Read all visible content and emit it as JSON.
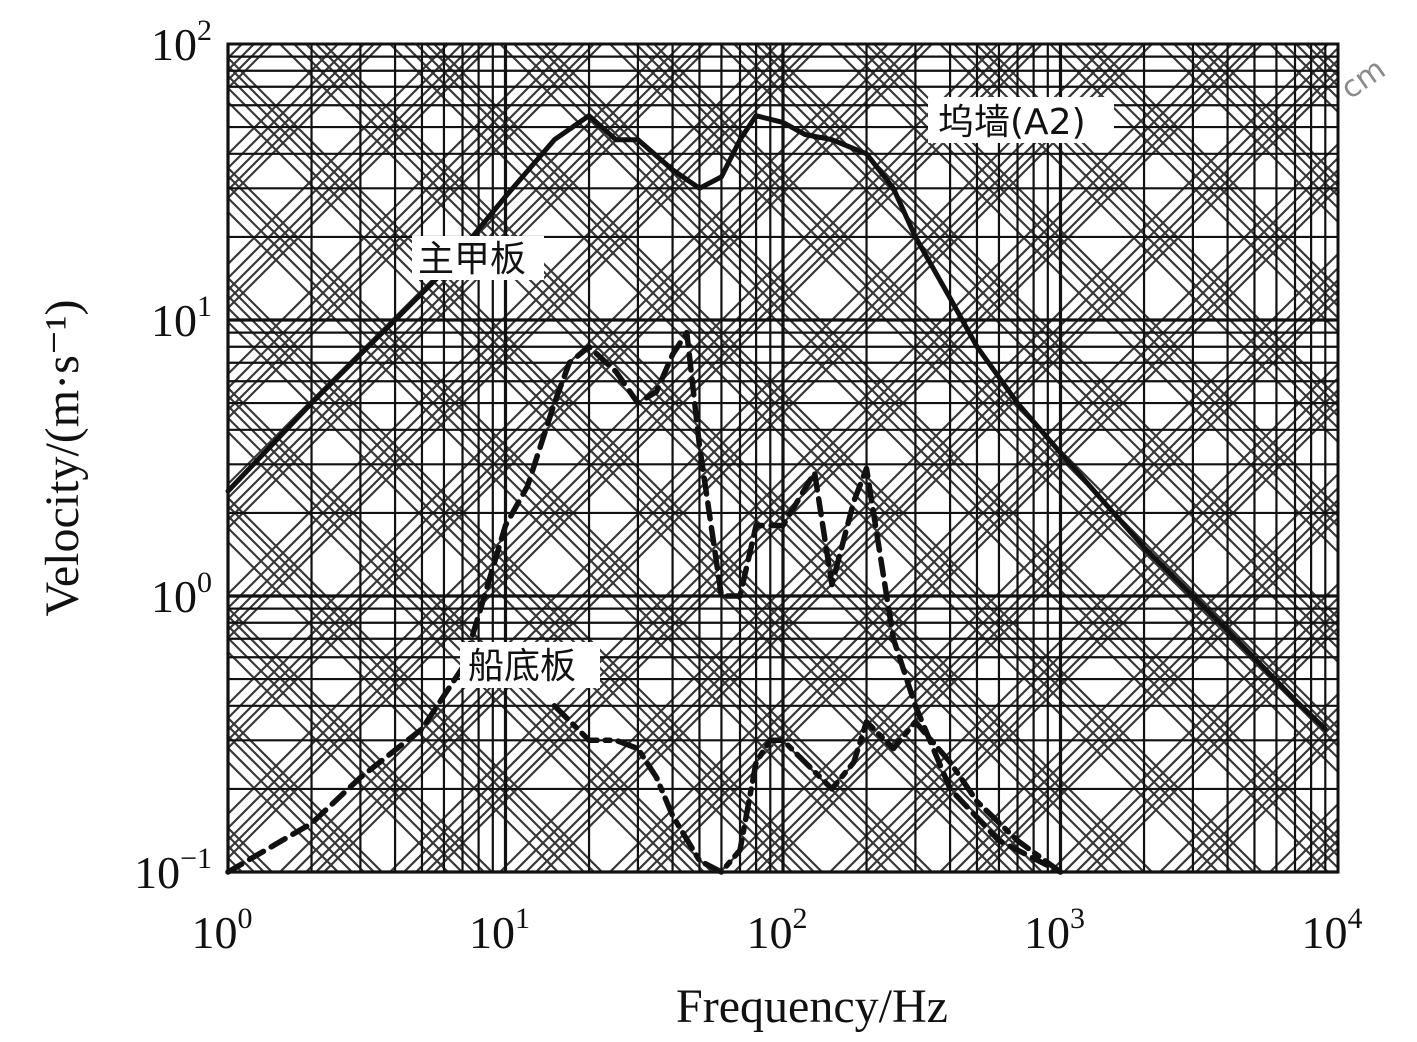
{
  "chart_data": {
    "type": "line",
    "xlabel": "Frequency/Hz",
    "ylabel": "Velocity/(m·s⁻¹)",
    "xscale": "log",
    "yscale": "log",
    "xlim": [
      1,
      10000
    ],
    "ylim": [
      0.1,
      100
    ],
    "grid": true,
    "x_ticks": [
      {
        "base": "10",
        "exp": "0"
      },
      {
        "base": "10",
        "exp": "1"
      },
      {
        "base": "10",
        "exp": "2"
      },
      {
        "base": "10",
        "exp": "3"
      },
      {
        "base": "10",
        "exp": "4"
      }
    ],
    "y_ticks": [
      {
        "base": "10",
        "exp": "−1"
      },
      {
        "base": "10",
        "exp": "0"
      },
      {
        "base": "10",
        "exp": "1"
      },
      {
        "base": "10",
        "exp": "2"
      }
    ],
    "series": [
      {
        "name": "坞墙(A2)",
        "style": "solid",
        "x": [
          1,
          2,
          4,
          6,
          10,
          15,
          20,
          25,
          30,
          40,
          50,
          60,
          70,
          80,
          100,
          120,
          150,
          200,
          250,
          300,
          400,
          500,
          700,
          1000,
          2000,
          4000,
          7000,
          9000
        ],
        "y": [
          2.4,
          5,
          10,
          15,
          28,
          45,
          55,
          45,
          45,
          35,
          30,
          33,
          45,
          55,
          52,
          47,
          45,
          40,
          30,
          20,
          12,
          8,
          5,
          3.3,
          1.5,
          0.75,
          0.42,
          0.33
        ]
      },
      {
        "name": "主甲板",
        "style": "dashed",
        "x": [
          1,
          2,
          3,
          5,
          7,
          8,
          10,
          12,
          15,
          17,
          20,
          25,
          30,
          35,
          40,
          45,
          50,
          60,
          70,
          80,
          100,
          130,
          150,
          180,
          200,
          250,
          300,
          400,
          600,
          1000
        ],
        "y": [
          0.1,
          0.15,
          0.22,
          0.33,
          0.55,
          0.85,
          1.8,
          2.5,
          5,
          7,
          8,
          6.5,
          5,
          5.5,
          7.5,
          9,
          3.5,
          1,
          1,
          1.8,
          1.8,
          2.8,
          1.1,
          2.2,
          2.9,
          0.7,
          0.4,
          0.2,
          0.13,
          0.1
        ]
      },
      {
        "name": "船底板",
        "style": "dash-dot",
        "x": [
          15,
          20,
          25,
          30,
          35,
          40,
          50,
          60,
          70,
          80,
          90,
          100,
          120,
          150,
          180,
          200,
          250,
          300,
          400,
          500,
          700,
          1000
        ],
        "y": [
          0.4,
          0.3,
          0.3,
          0.28,
          0.22,
          0.16,
          0.11,
          0.1,
          0.12,
          0.25,
          0.3,
          0.3,
          0.25,
          0.2,
          0.25,
          0.35,
          0.28,
          0.35,
          0.25,
          0.18,
          0.13,
          0.1
        ]
      }
    ],
    "annotations": [
      "坞墙(A2)",
      "主甲板",
      "船底板"
    ],
    "watermark": "cm"
  }
}
